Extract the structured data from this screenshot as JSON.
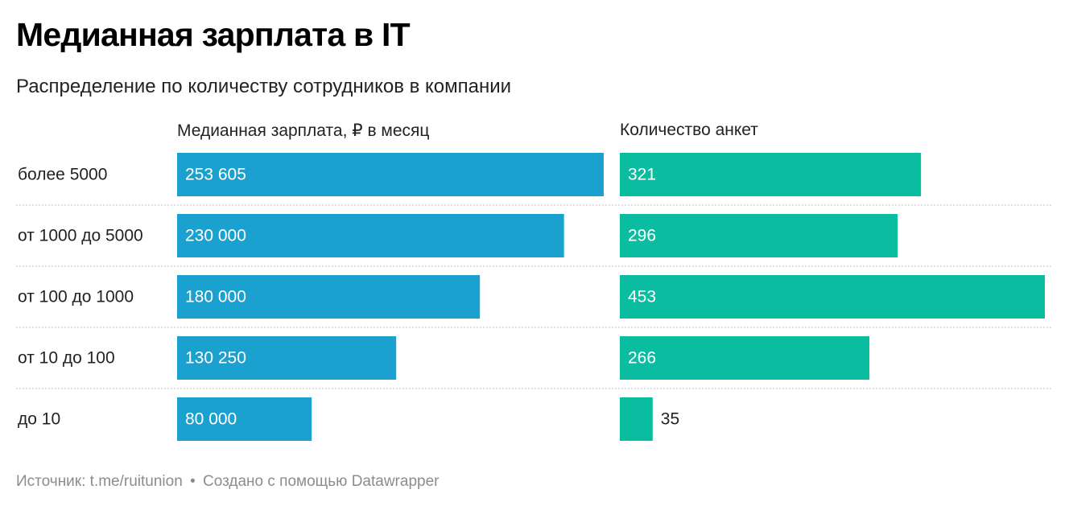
{
  "title": "Медианная зарплата в IT",
  "subtitle": "Распределение по количеству сотрудников в компании",
  "footer": {
    "source_label": "Источник:",
    "source": "t.me/ruitunion",
    "separator": "•",
    "credit": "Создано с помощью Datawrapper"
  },
  "colors": {
    "salary_bar": "#1ba1cf",
    "count_bar": "#0bbda0",
    "separator_line": "#cccccc"
  },
  "chart_data": {
    "type": "bar",
    "orientation": "horizontal",
    "categories": [
      "более 5000",
      "от 1000 до 5000",
      "от 100 до 1000",
      "от 10 до 100",
      "до 10"
    ],
    "series": [
      {
        "name": "Медианная зарплата, ₽ в месяц",
        "values": [
          253605,
          230000,
          180000,
          130250,
          80000
        ],
        "labels": [
          "253 605",
          "230 000",
          "180 000",
          "130 250",
          "80 000"
        ],
        "max": 253605
      },
      {
        "name": "Количество анкет",
        "values": [
          321,
          296,
          453,
          266,
          35
        ],
        "labels": [
          "321",
          "296",
          "453",
          "266",
          "35"
        ],
        "max": 453
      }
    ],
    "grid": false,
    "legend": "none"
  }
}
